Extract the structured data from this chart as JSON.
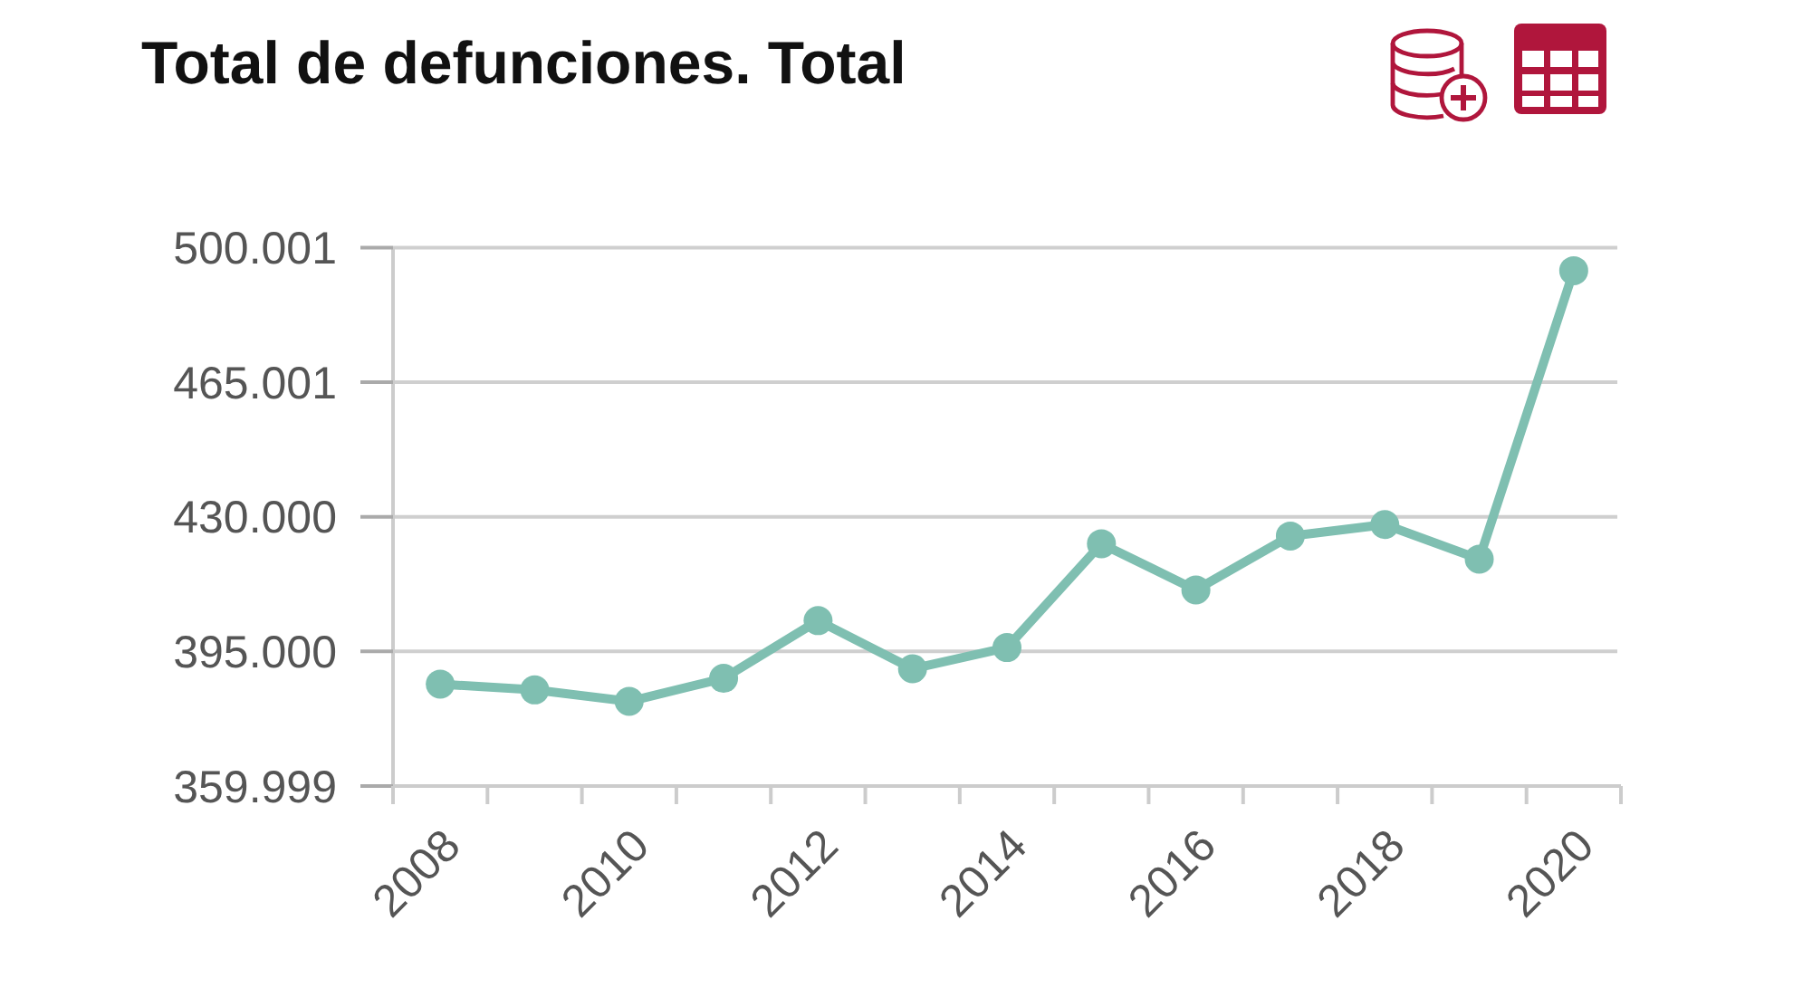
{
  "chart_data": {
    "type": "line",
    "title": "Total de defunciones. Total",
    "categories": [
      "2008",
      null,
      "2010",
      null,
      "2012",
      null,
      "2014",
      null,
      "2016",
      null,
      "2018",
      null,
      "2020"
    ],
    "values": [
      386500,
      385000,
      382000,
      388000,
      403000,
      390500,
      396000,
      423000,
      411000,
      425000,
      428000,
      419000,
      494000
    ],
    "color": "#7fbfb1",
    "marker": "circle",
    "line_style": "solid",
    "ylim": [
      359999,
      500001
    ],
    "yticks": [
      {
        "value": 359999,
        "label": "359.999"
      },
      {
        "value": 395000,
        "label": "395.000"
      },
      {
        "value": 430000,
        "label": "430.000"
      },
      {
        "value": 465001,
        "label": "465.001"
      },
      {
        "value": 500001,
        "label": "500.001"
      }
    ],
    "grid": "y"
  }
}
